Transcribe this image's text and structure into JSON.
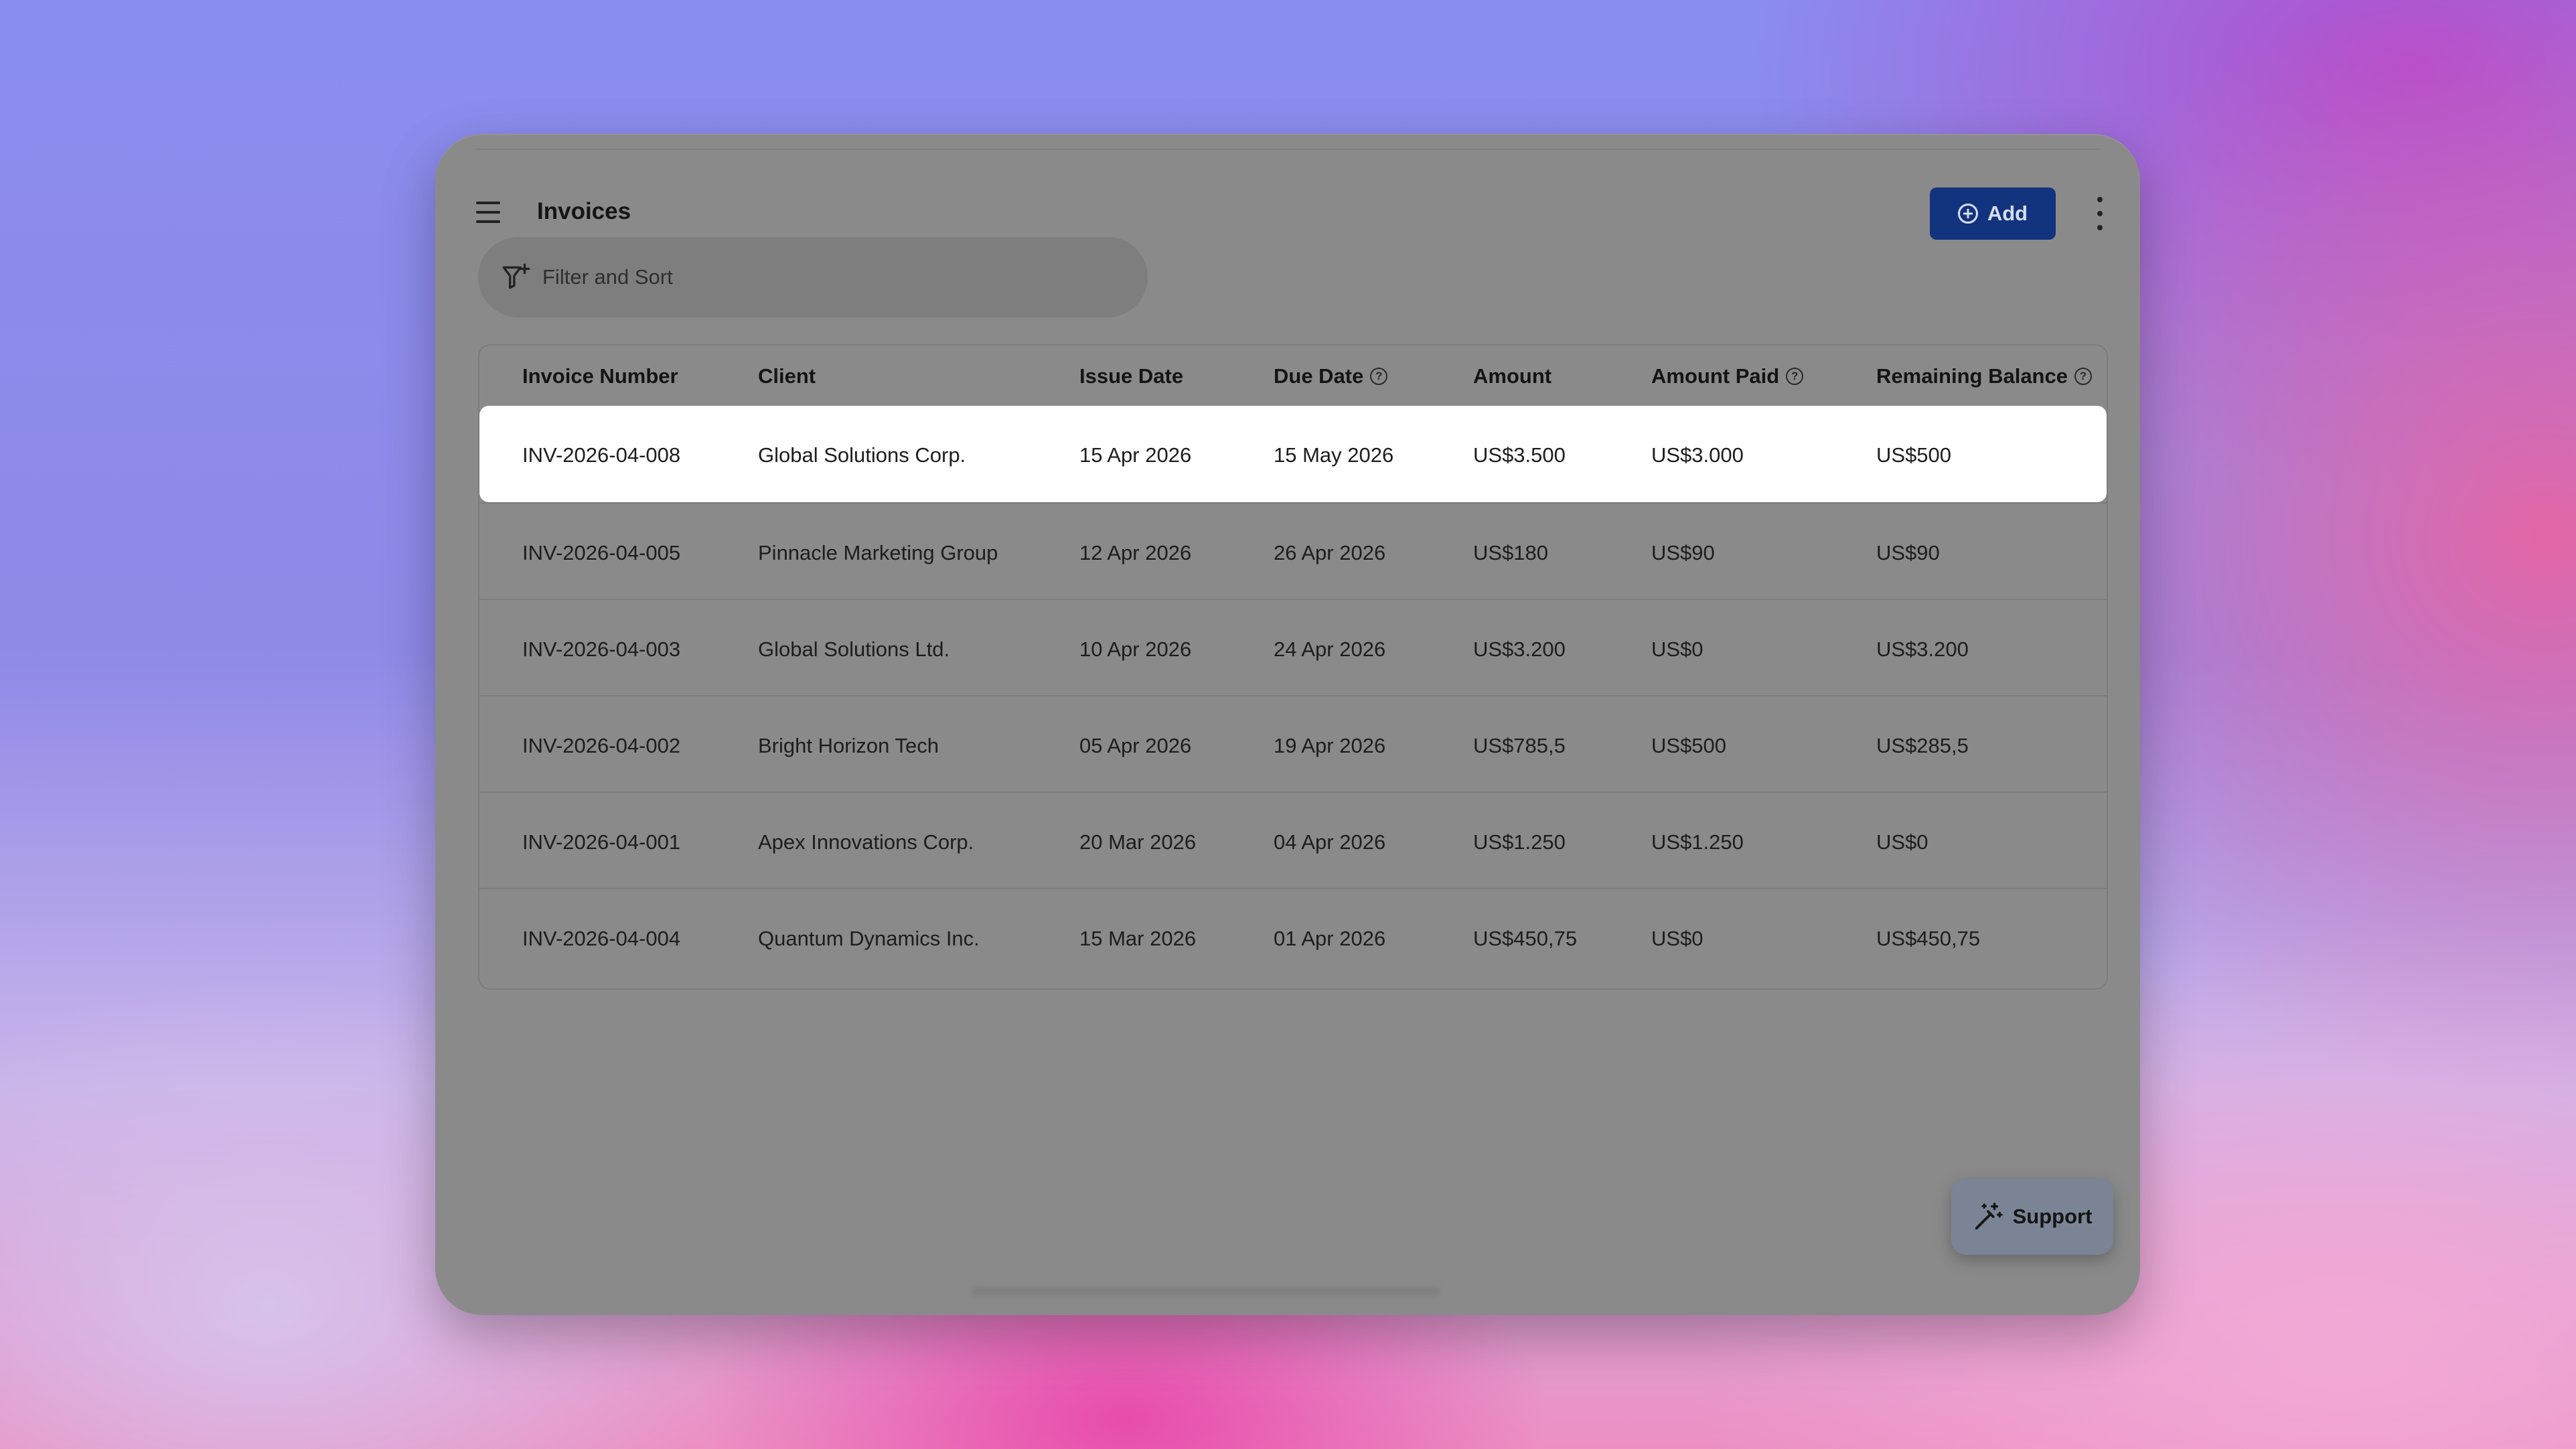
{
  "header": {
    "title": "Invoices",
    "add_label": "Add"
  },
  "filter": {
    "placeholder": "Filter and Sort"
  },
  "table": {
    "columns": [
      {
        "label": "Invoice Number",
        "help": false
      },
      {
        "label": "Client",
        "help": false
      },
      {
        "label": "Issue Date",
        "help": false
      },
      {
        "label": "Due Date",
        "help": true
      },
      {
        "label": "Amount",
        "help": false
      },
      {
        "label": "Amount Paid",
        "help": true
      },
      {
        "label": "Remaining Balance",
        "help": true
      }
    ],
    "rows": [
      [
        "INV-2026-04-008",
        "Global Solutions Corp.",
        "15 Apr 2026",
        "15 May 2026",
        "US$3.500",
        "US$3.000",
        "US$500"
      ],
      [
        "INV-2026-04-005",
        "Pinnacle Marketing Group",
        "12 Apr 2026",
        "26 Apr 2026",
        "US$180",
        "US$90",
        "US$90"
      ],
      [
        "INV-2026-04-003",
        "Global Solutions Ltd.",
        "10 Apr 2026",
        "24 Apr 2026",
        "US$3.200",
        "US$0",
        "US$3.200"
      ],
      [
        "INV-2026-04-002",
        "Bright Horizon Tech",
        "05 Apr 2026",
        "19 Apr 2026",
        "US$785,5",
        "US$500",
        "US$285,5"
      ],
      [
        "INV-2026-04-001",
        "Apex Innovations Corp.",
        "20 Mar 2026",
        "04 Apr 2026",
        "US$1.250",
        "US$1.250",
        "US$0"
      ],
      [
        "INV-2026-04-004",
        "Quantum Dynamics Inc.",
        "15 Mar 2026",
        "01 Apr 2026",
        "US$450,75",
        "US$0",
        "US$450,75"
      ]
    ],
    "selected_row": 0
  },
  "support": {
    "label": "Support"
  },
  "colors": {
    "primary_button": "#12347f",
    "selected_row": "#ffffff",
    "window_bg": "#8a8a8a"
  },
  "icons": {
    "menu": "hamburger-menu-icon",
    "add": "plus-circle-icon",
    "more": "more-vertical-icon",
    "filter": "filter-plus-icon",
    "help": "help-circle-icon",
    "support": "magic-wand-icon"
  }
}
